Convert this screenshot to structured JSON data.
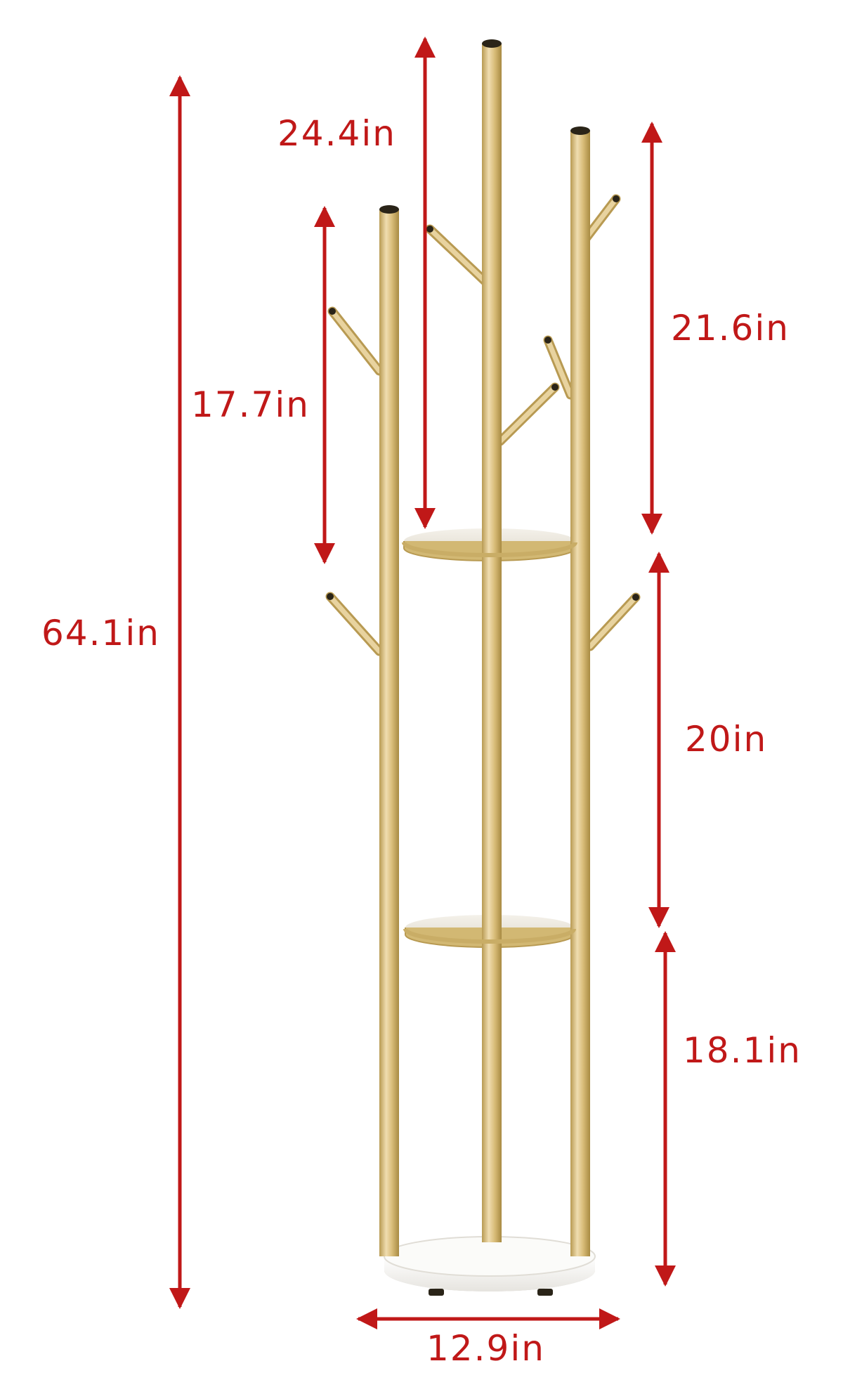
{
  "colors": {
    "dimension": "#c01818",
    "gold": "#d8bc78",
    "gold_dark": "#b89a52",
    "gold_light": "#f0ddb0",
    "shelf_top": "#f4f1ea",
    "base": "#f7f7f5",
    "cap": "#2a2418"
  },
  "dimensions": {
    "total_height": "64.1in",
    "center_top": "24.4in",
    "left_top": "17.7in",
    "right_top": "21.6in",
    "middle_section": "20in",
    "bottom_section": "18.1in",
    "base_width": "12.9in"
  }
}
